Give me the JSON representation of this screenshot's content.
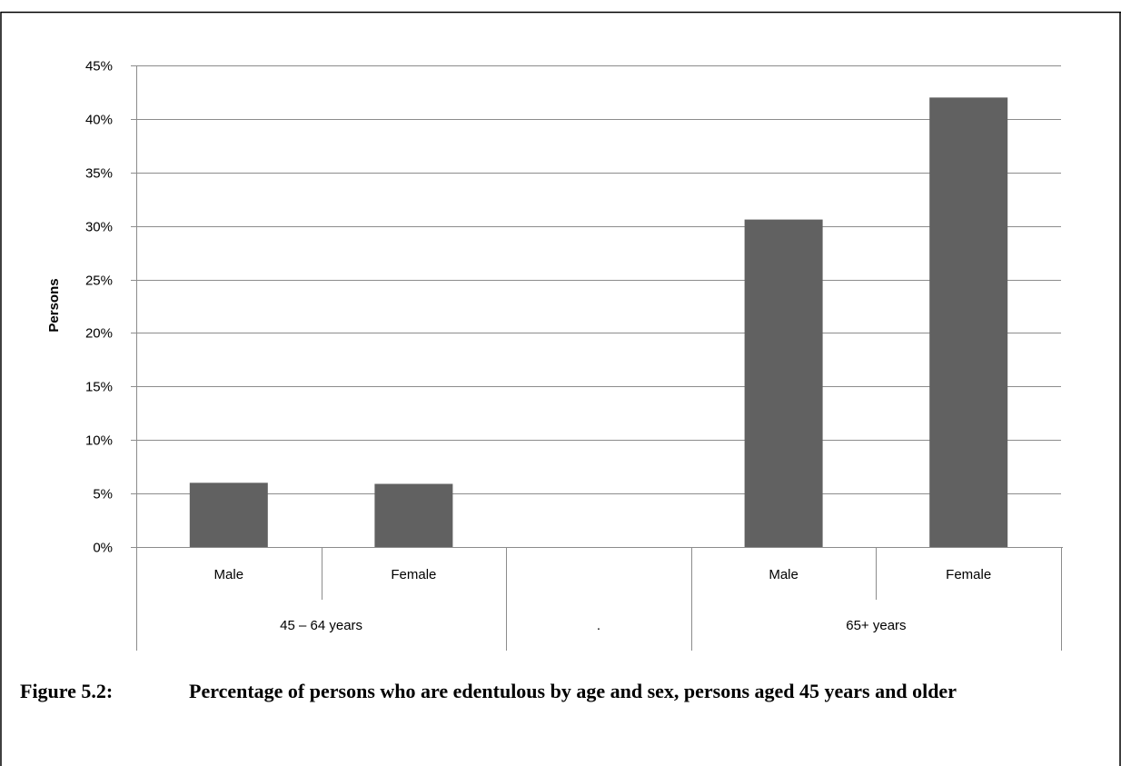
{
  "figure": {
    "number": "Figure 5.2:",
    "caption": "Percentage of persons who are edentulous by age and sex, persons aged 45 years and older"
  },
  "chart_data": {
    "type": "bar",
    "ylabel": "Persons",
    "xlabel": "",
    "ylim": [
      0,
      45
    ],
    "ytick_step": 5,
    "ytick_suffix": "%",
    "grid": true,
    "bar_color": "#616161",
    "categories": [
      "Male",
      "Female",
      "",
      "Male",
      "Female"
    ],
    "groups": [
      {
        "label": "45 – 64 years",
        "span": 2
      },
      {
        "label": ".",
        "span": 1
      },
      {
        "label": "65+ years",
        "span": 2
      }
    ],
    "values": [
      6.0,
      5.9,
      null,
      30.6,
      42.0
    ]
  }
}
